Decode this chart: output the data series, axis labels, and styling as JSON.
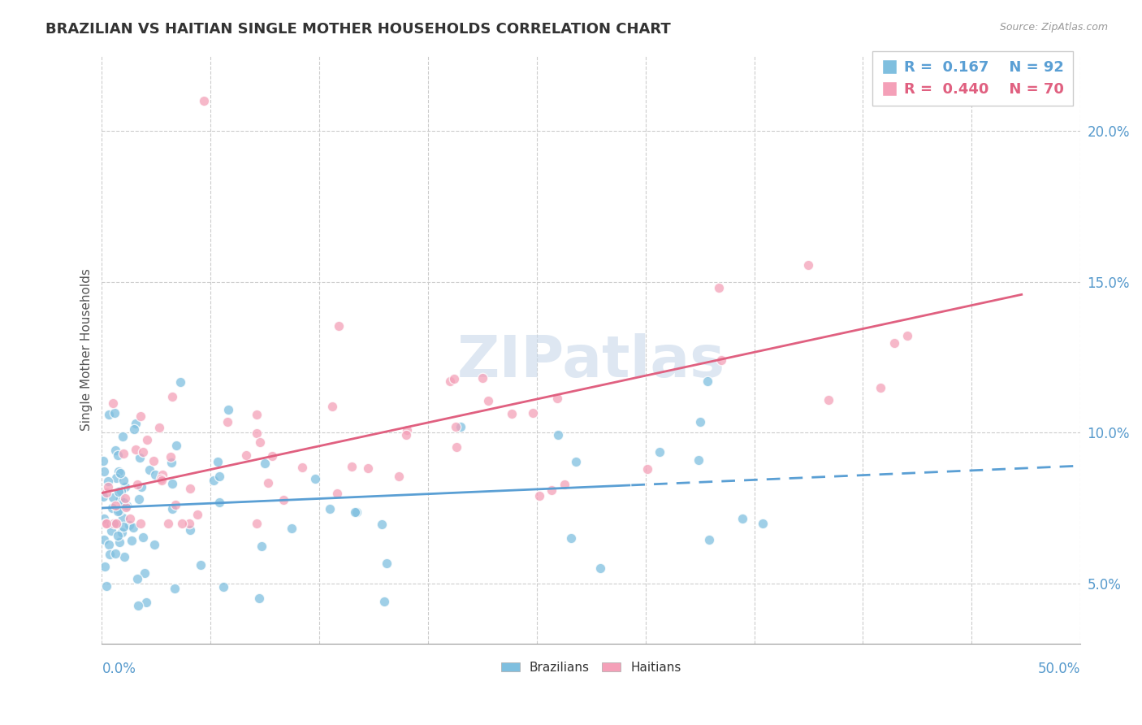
{
  "title": "BRAZILIAN VS HAITIAN SINGLE MOTHER HOUSEHOLDS CORRELATION CHART",
  "source": "Source: ZipAtlas.com",
  "ylabel": "Single Mother Households",
  "xlim": [
    0.0,
    50.0
  ],
  "ylim": [
    3.0,
    22.5
  ],
  "yticks": [
    5.0,
    10.0,
    15.0,
    20.0
  ],
  "ytick_labels": [
    "5.0%",
    "10.0%",
    "15.0%",
    "20.0%"
  ],
  "legend_r1": "R =  0.167",
  "legend_n1": "N = 92",
  "legend_r2": "R =  0.440",
  "legend_n2": "N = 70",
  "blue_color": "#7fbfdf",
  "pink_color": "#f4a0b8",
  "blue_line_color": "#5a9fd4",
  "pink_line_color": "#e06080",
  "blue_dot_edge": "#7fbfdf",
  "pink_dot_edge": "#f4a0b8",
  "braz_intercept": 7.5,
  "braz_slope": 0.028,
  "braz_solid_end": 27.0,
  "hait_intercept": 8.0,
  "hait_slope": 0.14,
  "watermark_text": "ZIPatlas",
  "watermark_color": "#c8d8ea",
  "grid_color": "#cccccc",
  "tick_color": "#5599cc"
}
